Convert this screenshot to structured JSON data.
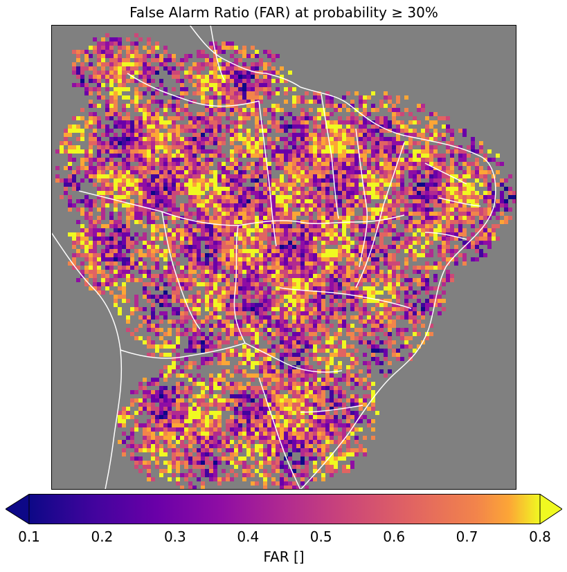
{
  "title": "False Alarm Ratio (FAR) at probability ≥ 30%",
  "colorbar": {
    "label": "FAR []",
    "min": 0.1,
    "max": 0.8,
    "extend": "both",
    "colormap": "plasma",
    "ticks": [
      "0.1",
      "0.2",
      "0.3",
      "0.4",
      "0.5",
      "0.6",
      "0.7",
      "0.8"
    ]
  },
  "colors": {
    "no_data": "#808080",
    "boundaries": "#ffffff",
    "plasma_low": "#0d0887",
    "plasma_high": "#f0f921"
  }
}
